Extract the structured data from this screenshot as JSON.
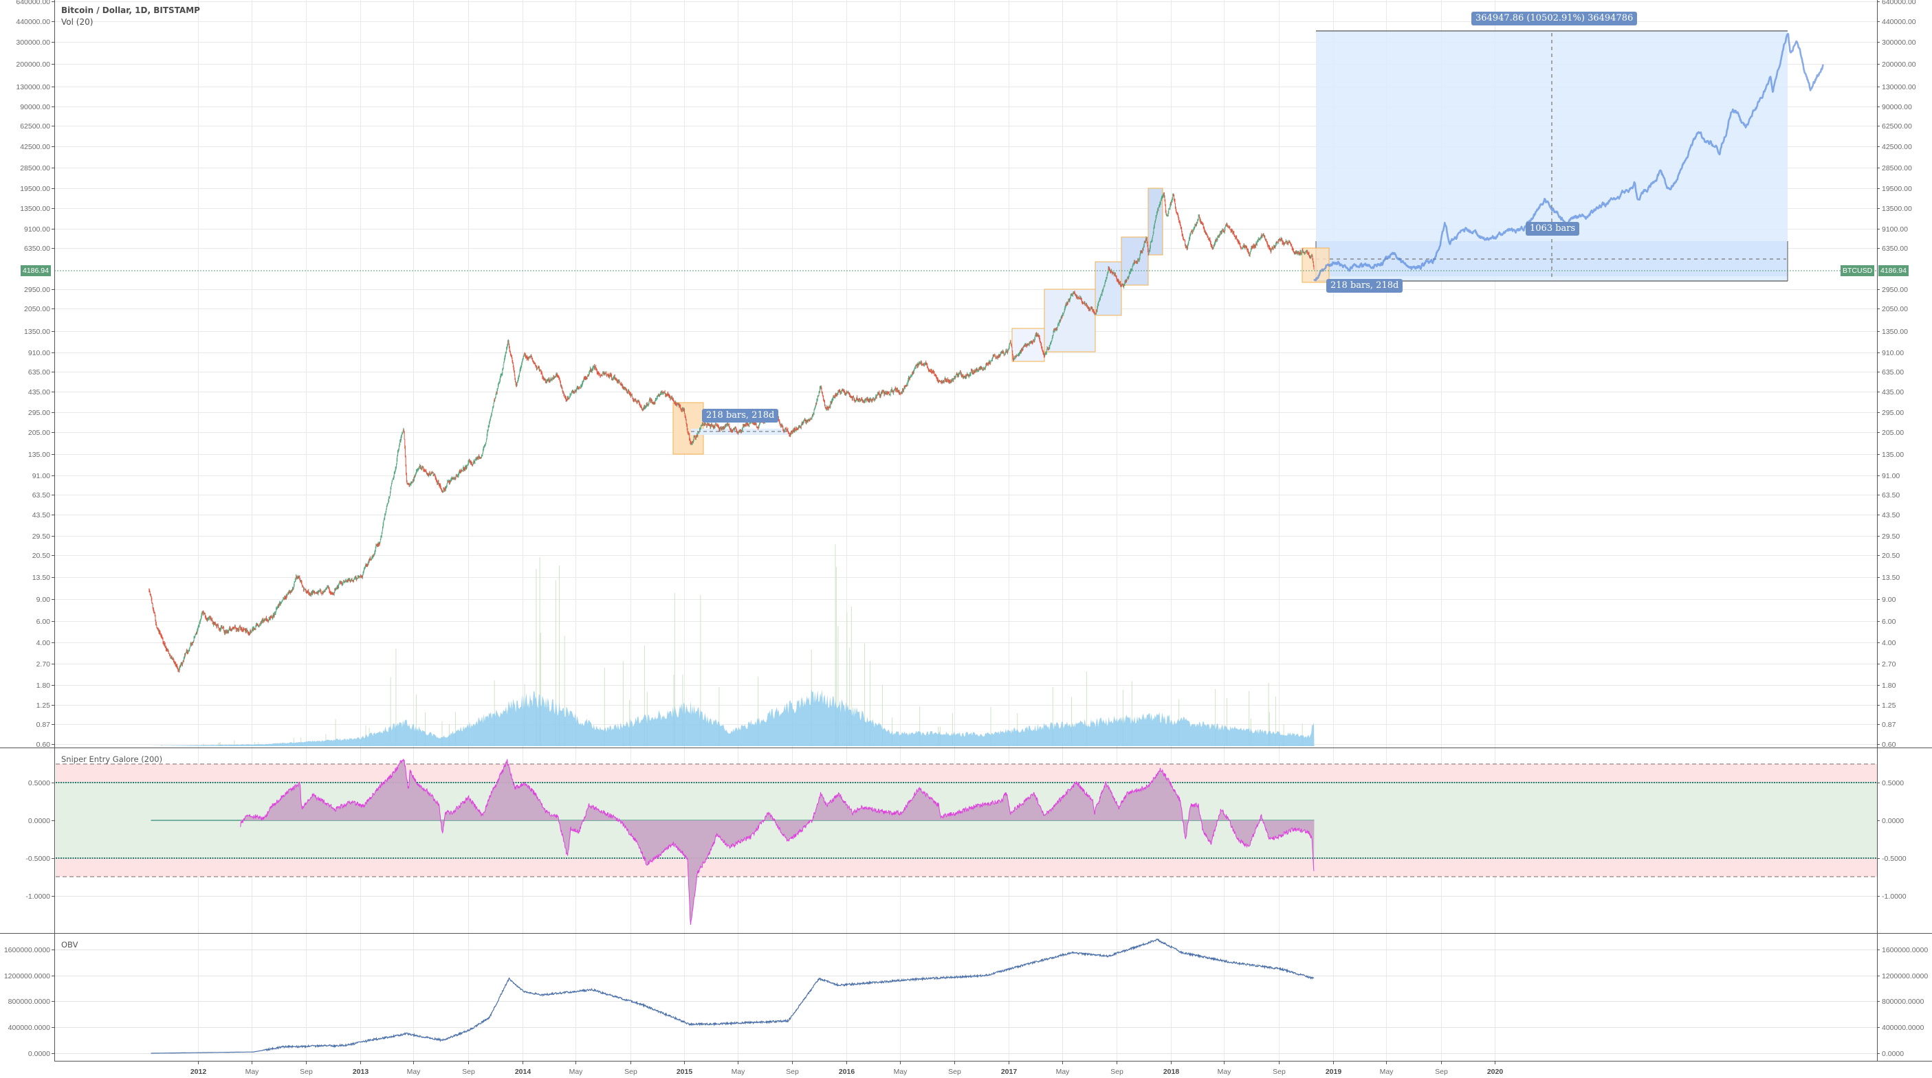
{
  "header": {
    "symbol_title": "Bitcoin / Dollar, 1D, BITSTAMP",
    "volume_indicator": "Vol (20)"
  },
  "panes": {
    "sniper_title": "Sniper Entry Galore (200)",
    "obv_title": "OBV"
  },
  "last_price": {
    "symbol": "BTCUSD",
    "value": "4186.94",
    "color": "#5c9e78"
  },
  "annotations": {
    "measure_2015": "218 bars, 218d",
    "measure_2018": "218 bars, 218d",
    "projection_range": "364947.86 (10502.91%) 36494786",
    "projection_bars": "1063 bars"
  },
  "colors": {
    "candle_up": "#53a67e",
    "candle_down": "#e5533f",
    "projection": "#4a80dc",
    "volume": "#8ecbed",
    "sniper_fill": "#c8a6c6",
    "sniper_line": "#df3fdf",
    "obv_line": "#4a6fa8",
    "zone_green": "#e5f0e4",
    "zone_red": "#fde3e4"
  },
  "chart_data": [
    {
      "type": "candlestick",
      "title": "Bitcoin / Dollar, 1D, BITSTAMP",
      "scale": "log",
      "ylim": [
        0.6,
        640000
      ],
      "y_ticks": [
        "640000.00",
        "440000.00",
        "300000.00",
        "200000.00",
        "130000.00",
        "90000.00",
        "62500.00",
        "42500.00",
        "28500.00",
        "19500.00",
        "13500.00",
        "9100.00",
        "6350.00",
        "2950.00",
        "2050.00",
        "1350.00",
        "910.00",
        "635.00",
        "435.00",
        "295.00",
        "205.00",
        "135.00",
        "91.00",
        "63.50",
        "43.50",
        "29.50",
        "20.50",
        "13.50",
        "9.00",
        "6.00",
        "4.00",
        "2.70",
        "1.80",
        "1.25",
        "0.87",
        "0.60"
      ],
      "x_ticks": [
        {
          "label": "2012",
          "date": "2012-01-01",
          "year": true
        },
        {
          "label": "May",
          "date": "2012-05-01"
        },
        {
          "label": "Sep",
          "date": "2012-09-01"
        },
        {
          "label": "2013",
          "date": "2013-01-01",
          "year": true
        },
        {
          "label": "May",
          "date": "2013-05-01"
        },
        {
          "label": "Sep",
          "date": "2013-09-01"
        },
        {
          "label": "2014",
          "date": "2014-01-01",
          "year": true
        },
        {
          "label": "May",
          "date": "2014-05-01"
        },
        {
          "label": "Sep",
          "date": "2014-09-01"
        },
        {
          "label": "2015",
          "date": "2015-01-01",
          "year": true
        },
        {
          "label": "May",
          "date": "2015-05-01"
        },
        {
          "label": "Sep",
          "date": "2015-09-01"
        },
        {
          "label": "2016",
          "date": "2016-01-01",
          "year": true
        },
        {
          "label": "May",
          "date": "2016-05-01"
        },
        {
          "label": "Sep",
          "date": "2016-09-01"
        },
        {
          "label": "2017",
          "date": "2017-01-01",
          "year": true
        },
        {
          "label": "May",
          "date": "2017-05-01"
        },
        {
          "label": "Sep",
          "date": "2017-09-01"
        },
        {
          "label": "2018",
          "date": "2018-01-01",
          "year": true
        },
        {
          "label": "May",
          "date": "2018-05-01"
        },
        {
          "label": "Sep",
          "date": "2018-09-01"
        },
        {
          "label": "2019",
          "date": "2019-01-01",
          "year": true
        },
        {
          "label": "May",
          "date": "2019-05-01"
        },
        {
          "label": "Sep",
          "date": "2019-09-01"
        },
        {
          "label": "2020",
          "date": "2020-01-01",
          "year": true
        }
      ],
      "price_keypoints": [
        [
          "2011-09-13",
          11
        ],
        [
          "2011-10-01",
          5
        ],
        [
          "2011-11-18",
          2.3
        ],
        [
          "2011-12-31",
          4.7
        ],
        [
          "2012-01-10",
          7
        ],
        [
          "2012-03-01",
          5
        ],
        [
          "2012-05-01",
          5
        ],
        [
          "2012-06-15",
          6.5
        ],
        [
          "2012-08-15",
          13
        ],
        [
          "2012-09-01",
          10
        ],
        [
          "2012-11-01",
          11
        ],
        [
          "2013-01-01",
          13.5
        ],
        [
          "2013-02-15",
          27
        ],
        [
          "2013-04-09",
          230
        ],
        [
          "2013-04-16",
          70
        ],
        [
          "2013-05-15",
          120
        ],
        [
          "2013-07-05",
          70
        ],
        [
          "2013-08-15",
          100
        ],
        [
          "2013-10-01",
          125
        ],
        [
          "2013-11-18",
          700
        ],
        [
          "2013-11-30",
          1150
        ],
        [
          "2013-12-18",
          520
        ],
        [
          "2014-01-05",
          950
        ],
        [
          "2014-02-25",
          500
        ],
        [
          "2014-03-20",
          600
        ],
        [
          "2014-04-10",
          360
        ],
        [
          "2014-06-03",
          660
        ],
        [
          "2014-07-15",
          620
        ],
        [
          "2014-08-20",
          470
        ],
        [
          "2014-10-05",
          320
        ],
        [
          "2014-11-15",
          420
        ],
        [
          "2014-12-31",
          320
        ],
        [
          "2015-01-14",
          170
        ],
        [
          "2015-02-15",
          240
        ],
        [
          "2015-04-15",
          220
        ],
        [
          "2015-06-15",
          230
        ],
        [
          "2015-07-10",
          290
        ],
        [
          "2015-08-24",
          205
        ],
        [
          "2015-10-15",
          260
        ],
        [
          "2015-11-04",
          500
        ],
        [
          "2015-11-15",
          330
        ],
        [
          "2015-12-15",
          450
        ],
        [
          "2016-02-01",
          375
        ],
        [
          "2016-05-01",
          450
        ],
        [
          "2016-06-17",
          750
        ],
        [
          "2016-08-02",
          520
        ],
        [
          "2016-10-01",
          610
        ],
        [
          "2016-12-31",
          960
        ],
        [
          "2017-01-05",
          1140
        ],
        [
          "2017-01-12",
          780
        ],
        [
          "2017-03-03",
          1280
        ],
        [
          "2017-03-24",
          900
        ],
        [
          "2017-05-25",
          2700
        ],
        [
          "2017-07-16",
          1900
        ],
        [
          "2017-08-15",
          4300
        ],
        [
          "2017-09-14",
          3000
        ],
        [
          "2017-11-07",
          7400
        ],
        [
          "2017-11-12",
          5700
        ],
        [
          "2017-12-17",
          19500
        ],
        [
          "2017-12-22",
          12000
        ],
        [
          "2018-01-06",
          17000
        ],
        [
          "2018-02-06",
          6000
        ],
        [
          "2018-03-05",
          11500
        ],
        [
          "2018-04-06",
          6600
        ],
        [
          "2018-05-05",
          9900
        ],
        [
          "2018-06-28",
          5800
        ],
        [
          "2018-07-24",
          8400
        ],
        [
          "2018-08-14",
          5900
        ],
        [
          "2018-09-05",
          7400
        ],
        [
          "2018-10-11",
          6200
        ],
        [
          "2018-11-14",
          5600
        ],
        [
          "2018-11-20",
          4186.94
        ]
      ],
      "projection_keypoints": [
        [
          "2018-11-20",
          3475
        ],
        [
          "2018-12-21",
          4900
        ],
        [
          "2019-02-21",
          4490
        ],
        [
          "2019-04-21",
          4690
        ],
        [
          "2019-05-16",
          5920
        ],
        [
          "2019-06-30",
          4180
        ],
        [
          "2019-08-21",
          5300
        ],
        [
          "2019-09-10",
          10200
        ],
        [
          "2019-09-21",
          6730
        ],
        [
          "2019-10-21",
          9180
        ],
        [
          "2019-12-07",
          7650
        ],
        [
          "2020-03-07",
          9180
        ],
        [
          "2020-04-23",
          15300
        ],
        [
          "2020-06-08",
          10600
        ],
        [
          "2020-08-07",
          12440
        ],
        [
          "2020-11-06",
          19580
        ],
        [
          "2020-11-11",
          23260
        ],
        [
          "2020-11-18",
          15900
        ],
        [
          "2021-01-09",
          26100
        ],
        [
          "2021-01-30",
          18360
        ],
        [
          "2021-03-31",
          55080
        ],
        [
          "2021-05-22",
          38760
        ],
        [
          "2021-06-21",
          87720
        ],
        [
          "2021-07-20",
          61200
        ],
        [
          "2021-09-13",
          150960
        ],
        [
          "2021-09-18",
          116280
        ],
        [
          "2021-10-23",
          368422
        ],
        [
          "2021-10-28",
          244800
        ],
        [
          "2021-11-12",
          300000
        ],
        [
          "2021-12-12",
          122400
        ],
        [
          "2022-01-11",
          200000
        ]
      ],
      "volume_relative_keypoints": [
        [
          "2011-09-13",
          0.0
        ],
        [
          "2012-06-01",
          0.01
        ],
        [
          "2013-01-01",
          0.04
        ],
        [
          "2013-04-10",
          0.12
        ],
        [
          "2013-07-01",
          0.04
        ],
        [
          "2013-12-01",
          0.2
        ],
        [
          "2014-02-01",
          0.25
        ],
        [
          "2014-07-01",
          0.08
        ],
        [
          "2015-01-15",
          0.2
        ],
        [
          "2015-04-15",
          0.07
        ],
        [
          "2015-11-01",
          0.27
        ],
        [
          "2016-04-15",
          0.07
        ],
        [
          "2016-11-01",
          0.06
        ],
        [
          "2017-03-15",
          0.1
        ],
        [
          "2017-12-01",
          0.15
        ],
        [
          "2018-04-15",
          0.1
        ],
        [
          "2018-11-10",
          0.05
        ],
        [
          "2018-11-20",
          0.14
        ]
      ]
    },
    {
      "type": "area",
      "title": "Sniper Entry Galore (200)",
      "ylim": [
        -1.35,
        0.85
      ],
      "y_ticks": [
        "0.5000",
        "0.0000",
        "-0.5000",
        "-1.0000"
      ],
      "bands": {
        "inner": [
          -0.5,
          0.5
        ],
        "outer": [
          -0.75,
          0.75
        ]
      },
      "points": [
        [
          "2011-09-17",
          0
        ],
        [
          "2012-04-05",
          0
        ],
        [
          "2012-04-06",
          -0.06
        ],
        [
          "2012-04-20",
          0.08
        ],
        [
          "2012-05-30",
          0.02
        ],
        [
          "2012-06-17",
          0.2
        ],
        [
          "2012-07-16",
          0.35
        ],
        [
          "2012-08-18",
          0.49
        ],
        [
          "2012-08-22",
          0.15
        ],
        [
          "2012-09-16",
          0.33
        ],
        [
          "2012-10-26",
          0.2
        ],
        [
          "2012-11-03",
          0.14
        ],
        [
          "2012-12-13",
          0.25
        ],
        [
          "2013-01-08",
          0.18
        ],
        [
          "2013-02-06",
          0.4
        ],
        [
          "2013-03-14",
          0.6
        ],
        [
          "2013-04-09",
          0.83
        ],
        [
          "2013-04-20",
          0.4
        ],
        [
          "2013-04-23",
          0.65
        ],
        [
          "2013-05-11",
          0.48
        ],
        [
          "2013-05-30",
          0.4
        ],
        [
          "2013-06-28",
          0.2
        ],
        [
          "2013-07-05",
          -0.2
        ],
        [
          "2013-07-12",
          0.1
        ],
        [
          "2013-07-27",
          0.1
        ],
        [
          "2013-09-02",
          0.3
        ],
        [
          "2013-10-04",
          0.06
        ],
        [
          "2013-10-19",
          0.3
        ],
        [
          "2013-11-28",
          0.78
        ],
        [
          "2013-12-16",
          0.42
        ],
        [
          "2014-01-05",
          0.5
        ],
        [
          "2014-01-30",
          0.35
        ],
        [
          "2014-02-25",
          0.1
        ],
        [
          "2014-03-22",
          0.05
        ],
        [
          "2014-04-13",
          -0.48
        ],
        [
          "2014-04-20",
          -0.1
        ],
        [
          "2014-05-09",
          -0.15
        ],
        [
          "2014-05-31",
          0.2
        ],
        [
          "2014-06-29",
          0.12
        ],
        [
          "2014-08-08",
          0.0
        ],
        [
          "2014-09-17",
          -0.3
        ],
        [
          "2014-10-09",
          -0.58
        ],
        [
          "2014-11-07",
          -0.45
        ],
        [
          "2014-12-06",
          -0.3
        ],
        [
          "2015-01-08",
          -0.5
        ],
        [
          "2015-01-15",
          -1.4
        ],
        [
          "2015-01-30",
          -0.7
        ],
        [
          "2015-02-25",
          -0.45
        ],
        [
          "2015-03-15",
          -0.2
        ],
        [
          "2015-04-13",
          -0.35
        ],
        [
          "2015-05-31",
          -0.22
        ],
        [
          "2015-07-10",
          0.1
        ],
        [
          "2015-08-23",
          -0.28
        ],
        [
          "2015-10-16",
          0
        ],
        [
          "2015-11-04",
          0.35
        ],
        [
          "2015-11-18",
          0.2
        ],
        [
          "2015-12-14",
          0.35
        ],
        [
          "2016-01-15",
          0.1
        ],
        [
          "2016-02-06",
          0.18
        ],
        [
          "2016-04-01",
          0.1
        ],
        [
          "2016-05-04",
          0.1
        ],
        [
          "2016-06-13",
          0.42
        ],
        [
          "2016-07-27",
          0.2
        ],
        [
          "2016-08-01",
          0.05
        ],
        [
          "2016-09-05",
          0.1
        ],
        [
          "2016-10-26",
          0.2
        ],
        [
          "2016-12-16",
          0.25
        ],
        [
          "2016-12-27",
          0.37
        ],
        [
          "2017-01-05",
          0.1
        ],
        [
          "2017-02-28",
          0.35
        ],
        [
          "2017-03-22",
          0.05
        ],
        [
          "2017-05-01",
          0.3
        ],
        [
          "2017-06-03",
          0.5
        ],
        [
          "2017-07-10",
          0.25
        ],
        [
          "2017-07-13",
          0.1
        ],
        [
          "2017-08-08",
          0.5
        ],
        [
          "2017-09-06",
          0.17
        ],
        [
          "2017-09-24",
          0.35
        ],
        [
          "2017-11-11",
          0.45
        ],
        [
          "2017-12-10",
          0.68
        ],
        [
          "2018-01-01",
          0.48
        ],
        [
          "2018-01-23",
          0.25
        ],
        [
          "2018-02-03",
          -0.28
        ],
        [
          "2018-02-14",
          0.2
        ],
        [
          "2018-03-04",
          0.2
        ],
        [
          "2018-03-15",
          -0.15
        ],
        [
          "2018-04-02",
          -0.3
        ],
        [
          "2018-04-24",
          0.15
        ],
        [
          "2018-05-12",
          0.0
        ],
        [
          "2018-05-31",
          -0.25
        ],
        [
          "2018-06-25",
          -0.35
        ],
        [
          "2018-07-24",
          0.05
        ],
        [
          "2018-08-12",
          -0.25
        ],
        [
          "2018-09-06",
          -0.2
        ],
        [
          "2018-10-02",
          -0.12
        ],
        [
          "2018-11-07",
          -0.15
        ],
        [
          "2018-11-15",
          -0.25
        ],
        [
          "2018-11-20",
          -0.78
        ]
      ]
    },
    {
      "type": "line",
      "title": "OBV",
      "ylim": [
        -50000,
        1850000
      ],
      "y_ticks": [
        "1600000.0000",
        "1200000.0000",
        "800000.0000",
        "400000.0000",
        "0.0000"
      ],
      "points": [
        [
          "2011-09-17",
          0
        ],
        [
          "2012-05-05",
          20000
        ],
        [
          "2012-07-12",
          100000
        ],
        [
          "2012-11-28",
          120000
        ],
        [
          "2013-01-23",
          200000
        ],
        [
          "2013-04-16",
          300000
        ],
        [
          "2013-07-05",
          200000
        ],
        [
          "2013-09-02",
          350000
        ],
        [
          "2013-10-19",
          550000
        ],
        [
          "2013-12-02",
          1150000
        ],
        [
          "2014-01-05",
          950000
        ],
        [
          "2014-02-14",
          900000
        ],
        [
          "2014-06-07",
          980000
        ],
        [
          "2014-09-28",
          750000
        ],
        [
          "2015-01-12",
          450000
        ],
        [
          "2015-03-11",
          450000
        ],
        [
          "2015-08-23",
          500000
        ],
        [
          "2015-10-31",
          1150000
        ],
        [
          "2015-12-14",
          1050000
        ],
        [
          "2016-06-25",
          1150000
        ],
        [
          "2016-11-10",
          1200000
        ],
        [
          "2017-01-30",
          1350000
        ],
        [
          "2017-05-22",
          1550000
        ],
        [
          "2017-08-15",
          1500000
        ],
        [
          "2017-12-02",
          1750000
        ],
        [
          "2018-01-27",
          1550000
        ],
        [
          "2018-05-19",
          1400000
        ],
        [
          "2018-09-06",
          1300000
        ],
        [
          "2018-11-20",
          1150000
        ]
      ]
    }
  ]
}
